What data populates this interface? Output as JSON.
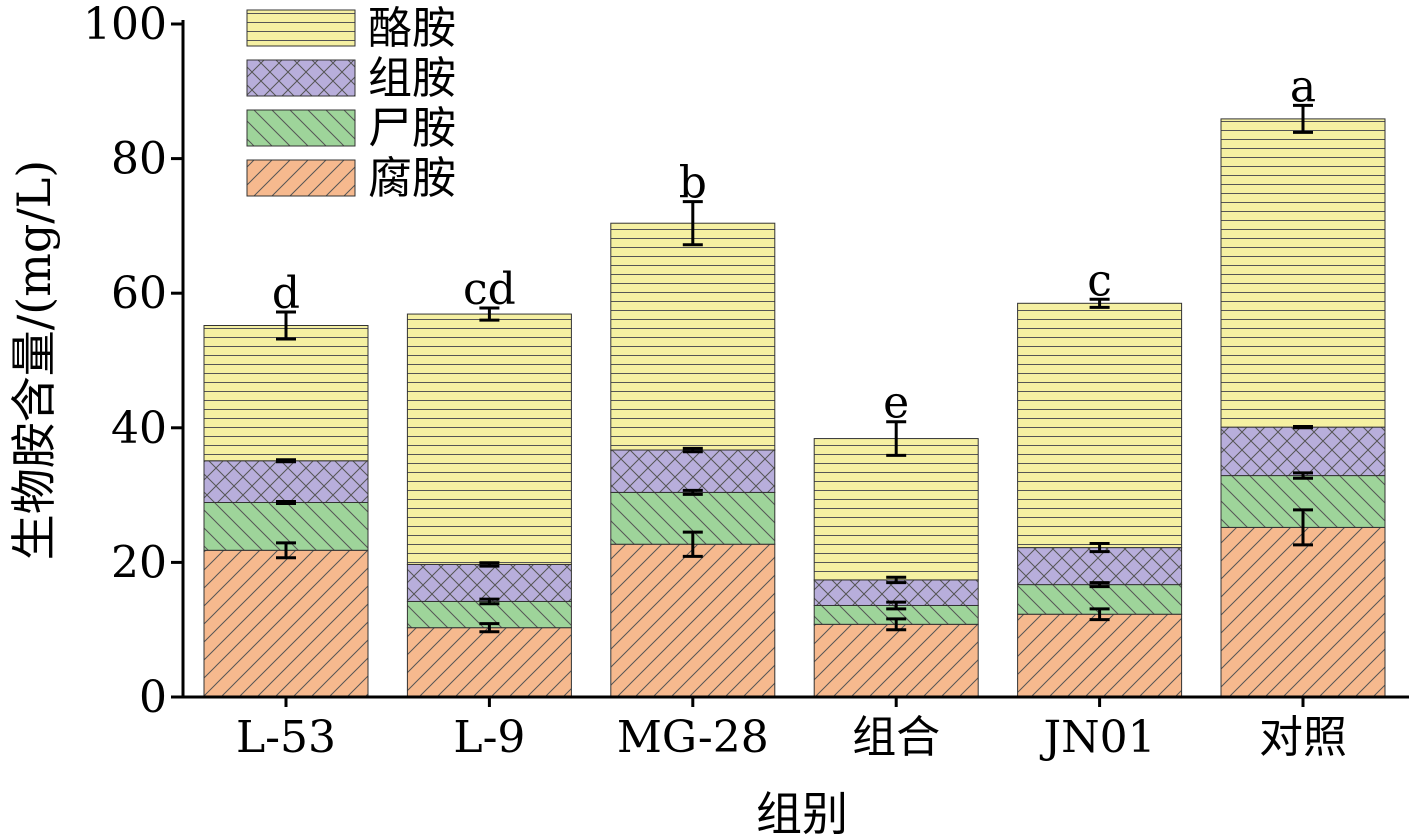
{
  "chart_data": {
    "type": "bar",
    "stacked": true,
    "xlabel": "组别",
    "ylabel": "生物胺含量/(mg/L)",
    "ylim": [
      0,
      100
    ],
    "yticks": [
      0,
      20,
      40,
      60,
      80,
      100
    ],
    "categories": [
      "L-53",
      "L-9",
      "MG-28",
      "组合",
      "JN01",
      "对照"
    ],
    "significance": [
      "d",
      "cd",
      "b",
      "e",
      "c",
      "a"
    ],
    "legend_position": "top-left",
    "series": [
      {
        "name": "腐胺",
        "color": "#F6B98E",
        "pattern": "diag-right",
        "values": [
          21.8,
          10.3,
          22.7,
          10.8,
          12.3,
          25.2
        ],
        "errors": [
          1.1,
          0.6,
          1.8,
          0.8,
          0.8,
          2.6
        ]
      },
      {
        "name": "尸胺",
        "color": "#9ED49A",
        "pattern": "diag-left",
        "values": [
          7.1,
          3.9,
          7.7,
          2.8,
          4.4,
          7.7
        ],
        "errors": [
          0.15,
          0.35,
          0.3,
          0.5,
          0.3,
          0.4
        ]
      },
      {
        "name": "组胺",
        "color": "#B8AEDB",
        "pattern": "cross",
        "values": [
          6.2,
          5.5,
          6.3,
          3.8,
          5.5,
          7.2
        ],
        "errors": [
          0.15,
          0.25,
          0.25,
          0.4,
          0.6,
          0.1
        ]
      },
      {
        "name": "酪胺",
        "color": "#F5F0A2",
        "pattern": "horizontal",
        "values": [
          20.1,
          37.2,
          33.7,
          21.0,
          36.3,
          45.8
        ],
        "errors": [
          2.0,
          0.9,
          3.2,
          2.5,
          0.6,
          2.0
        ]
      }
    ]
  }
}
